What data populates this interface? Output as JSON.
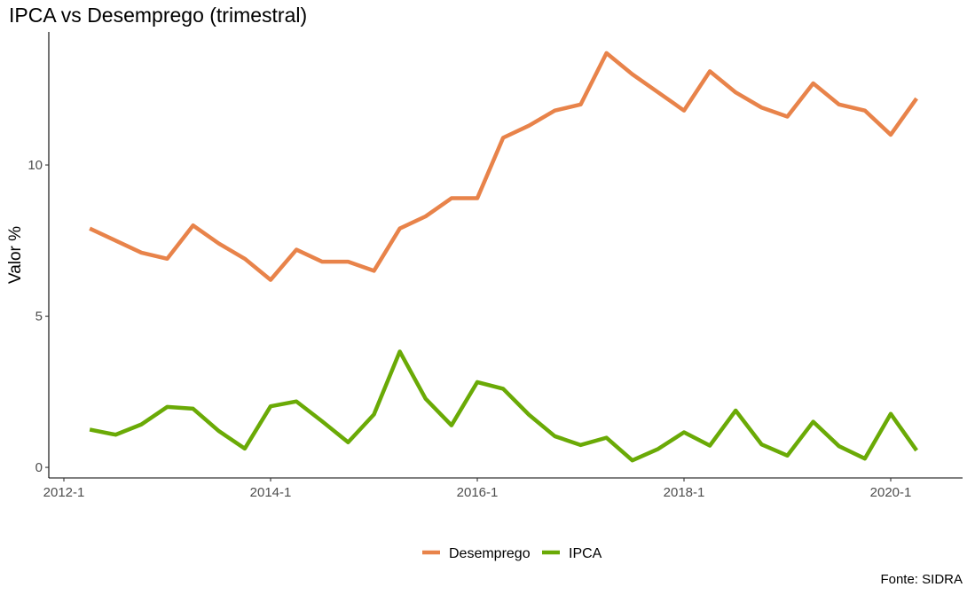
{
  "chart_data": {
    "type": "line",
    "title": "IPCA vs Desemprego (trimestral)",
    "caption": "Fonte: SIDRA",
    "xlabel": "",
    "ylabel": "Valor %",
    "x_ticks": [
      "2012-1",
      "2014-1",
      "2016-1",
      "2018-1",
      "2020-1"
    ],
    "y_ticks": [
      0,
      5,
      10
    ],
    "ylim": [
      -0.35,
      14.4
    ],
    "x": [
      "2012-2",
      "2012-3",
      "2012-4",
      "2013-1",
      "2013-2",
      "2013-3",
      "2013-4",
      "2014-1",
      "2014-2",
      "2014-3",
      "2014-4",
      "2015-1",
      "2015-2",
      "2015-3",
      "2015-4",
      "2016-1",
      "2016-2",
      "2016-3",
      "2016-4",
      "2017-1",
      "2017-2",
      "2017-3",
      "2017-4",
      "2018-1",
      "2018-2",
      "2018-3",
      "2018-4",
      "2019-1",
      "2019-2",
      "2019-3",
      "2019-4",
      "2020-1",
      "2020-2"
    ],
    "series": [
      {
        "name": "Desemprego",
        "color": "#E8834A",
        "values": [
          7.9,
          7.5,
          7.1,
          6.9,
          8.0,
          7.4,
          6.9,
          6.2,
          7.2,
          6.8,
          6.8,
          6.5,
          7.9,
          8.3,
          8.9,
          8.9,
          10.9,
          11.3,
          11.8,
          12.0,
          13.7,
          13.0,
          12.4,
          11.8,
          13.1,
          12.4,
          11.9,
          11.6,
          12.7,
          12.0,
          11.8,
          11.0,
          12.2
        ]
      },
      {
        "name": "IPCA",
        "color": "#6AAA06",
        "values": [
          1.25,
          1.08,
          1.42,
          2.0,
          1.94,
          1.2,
          0.62,
          2.02,
          2.18,
          1.52,
          0.83,
          1.75,
          3.83,
          2.27,
          1.39,
          2.82,
          2.6,
          1.74,
          1.03,
          0.74,
          0.98,
          0.23,
          0.61,
          1.16,
          0.72,
          1.88,
          0.76,
          0.39,
          1.51,
          0.7,
          0.29,
          1.77,
          0.56
        ]
      }
    ],
    "legend_position": "bottom",
    "grid": false
  }
}
